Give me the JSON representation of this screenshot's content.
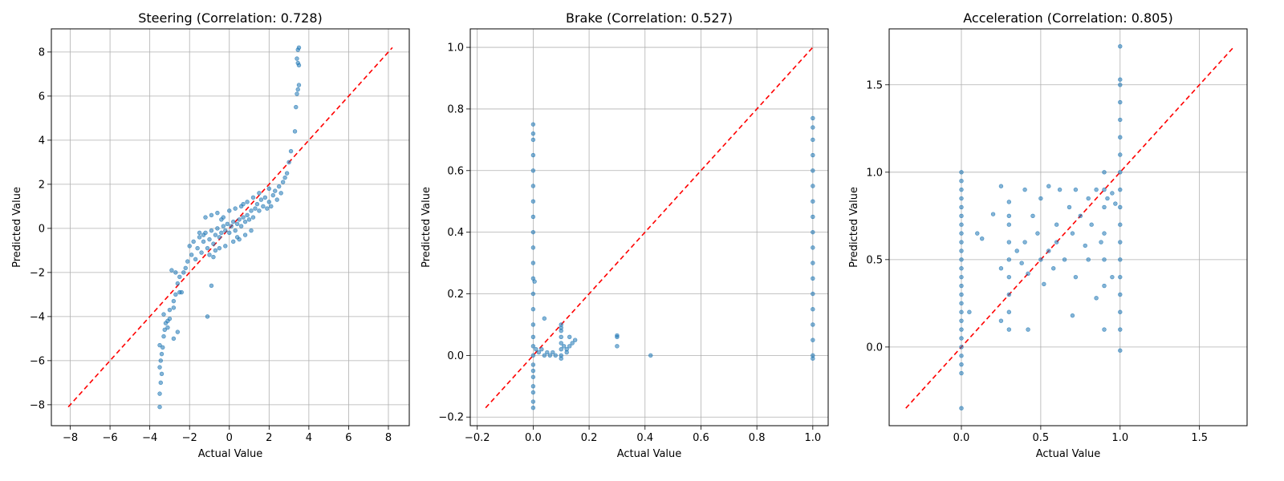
{
  "chart_data": [
    {
      "type": "scatter",
      "title": "Steering (Correlation: 0.728)",
      "xlabel": "Actual Value",
      "ylabel": "Predicted Value",
      "xlim": [
        -8.95,
        9.05
      ],
      "ylim": [
        -8.95,
        9.05
      ],
      "xticks": [
        -8,
        -6,
        -4,
        -2,
        0,
        2,
        4,
        6,
        8
      ],
      "xtick_labels": [
        "−8",
        "−6",
        "−4",
        "−2",
        "0",
        "2",
        "4",
        "6",
        "8"
      ],
      "yticks": [
        -8,
        -6,
        -4,
        -2,
        0,
        2,
        4,
        6,
        8
      ],
      "ytick_labels": [
        "−8",
        "−6",
        "−4",
        "−2",
        "0",
        "2",
        "4",
        "6",
        "8"
      ],
      "grid": true,
      "reference_line": {
        "style": "dashed",
        "color": "#ff0000",
        "from": [
          -8.1,
          -8.1
        ],
        "to": [
          8.2,
          8.2
        ]
      },
      "point_color": "#1f77b4",
      "points": [
        [
          -3.5,
          -8.1
        ],
        [
          -3.5,
          -7.5
        ],
        [
          -3.45,
          -7.0
        ],
        [
          -3.4,
          -6.6
        ],
        [
          -3.5,
          -6.3
        ],
        [
          -3.45,
          -6.0
        ],
        [
          -3.4,
          -5.7
        ],
        [
          -3.35,
          -5.4
        ],
        [
          -3.5,
          -5.3
        ],
        [
          -3.3,
          -4.9
        ],
        [
          -3.25,
          -4.6
        ],
        [
          -3.2,
          -4.3
        ],
        [
          -3.1,
          -4.5
        ],
        [
          -3.0,
          -4.1
        ],
        [
          -3.3,
          -3.9
        ],
        [
          -3.0,
          -3.7
        ],
        [
          -2.8,
          -3.6
        ],
        [
          -2.8,
          -3.3
        ],
        [
          -2.7,
          -3.0
        ],
        [
          -2.5,
          -2.9
        ],
        [
          -2.4,
          -2.9
        ],
        [
          -2.6,
          -2.5
        ],
        [
          -2.5,
          -2.2
        ],
        [
          -2.7,
          -2.0
        ],
        [
          -2.9,
          -1.9
        ],
        [
          -2.8,
          -5.0
        ],
        [
          -2.6,
          -4.7
        ],
        [
          -3.1,
          -4.2
        ],
        [
          -2.2,
          -1.8
        ],
        [
          -2.1,
          -1.5
        ],
        [
          -1.9,
          -1.2
        ],
        [
          -2.0,
          -0.8
        ],
        [
          -1.8,
          -0.6
        ],
        [
          -1.6,
          -0.9
        ],
        [
          -1.5,
          -0.4
        ],
        [
          -1.3,
          -0.6
        ],
        [
          -1.2,
          -0.2
        ],
        [
          -1.4,
          -1.1
        ],
        [
          -1.1,
          -0.9
        ],
        [
          -1.0,
          -0.5
        ],
        [
          -0.9,
          -0.1
        ],
        [
          -0.8,
          -0.7
        ],
        [
          -0.7,
          -0.3
        ],
        [
          -0.6,
          0.0
        ],
        [
          -0.5,
          -0.4
        ],
        [
          -0.4,
          -0.2
        ],
        [
          -0.3,
          0.1
        ],
        [
          -0.2,
          -0.1
        ],
        [
          -0.1,
          0.2
        ],
        [
          0.0,
          -0.2
        ],
        [
          0.1,
          0.1
        ],
        [
          0.2,
          0.3
        ],
        [
          0.3,
          -0.1
        ],
        [
          0.4,
          0.2
        ],
        [
          0.5,
          0.4
        ],
        [
          0.6,
          0.1
        ],
        [
          0.7,
          0.5
        ],
        [
          0.8,
          0.3
        ],
        [
          0.9,
          0.6
        ],
        [
          1.0,
          0.4
        ],
        [
          1.1,
          0.8
        ],
        [
          1.2,
          0.5
        ],
        [
          1.3,
          0.9
        ],
        [
          1.4,
          1.1
        ],
        [
          1.5,
          0.8
        ],
        [
          1.6,
          1.3
        ],
        [
          1.7,
          1.0
        ],
        [
          1.8,
          1.4
        ],
        [
          -1.2,
          0.5
        ],
        [
          -0.9,
          0.6
        ],
        [
          -0.6,
          0.7
        ],
        [
          -0.3,
          0.5
        ],
        [
          0.0,
          0.8
        ],
        [
          0.3,
          0.9
        ],
        [
          0.6,
          1.0
        ],
        [
          0.9,
          1.2
        ],
        [
          -0.5,
          -0.9
        ],
        [
          -0.2,
          -0.8
        ],
        [
          0.2,
          -0.6
        ],
        [
          0.5,
          -0.5
        ],
        [
          0.8,
          -0.3
        ],
        [
          1.1,
          -0.1
        ],
        [
          -1.0,
          -1.2
        ],
        [
          -0.7,
          -1.0
        ],
        [
          -0.9,
          -2.6
        ],
        [
          -1.1,
          -4.0
        ],
        [
          2.0,
          1.2
        ],
        [
          2.2,
          1.5
        ],
        [
          2.3,
          1.7
        ],
        [
          2.0,
          1.8
        ],
        [
          2.5,
          1.9
        ],
        [
          2.7,
          2.1
        ],
        [
          2.8,
          2.3
        ],
        [
          2.9,
          2.5
        ],
        [
          2.1,
          1.0
        ],
        [
          2.4,
          1.3
        ],
        [
          2.6,
          1.6
        ],
        [
          3.0,
          3.0
        ],
        [
          3.1,
          3.5
        ],
        [
          3.3,
          4.4
        ],
        [
          3.35,
          5.5
        ],
        [
          3.4,
          6.1
        ],
        [
          3.45,
          6.3
        ],
        [
          3.5,
          6.5
        ],
        [
          3.45,
          7.5
        ],
        [
          3.5,
          7.4
        ],
        [
          3.4,
          7.7
        ],
        [
          3.45,
          8.1
        ],
        [
          3.5,
          8.2
        ],
        [
          -1.7,
          -1.4
        ],
        [
          -2.3,
          -2.0
        ],
        [
          -1.5,
          -0.2
        ],
        [
          1.2,
          1.4
        ],
        [
          1.5,
          1.6
        ],
        [
          0.7,
          1.1
        ],
        [
          -0.4,
          0.4
        ],
        [
          0.4,
          -0.4
        ],
        [
          1.9,
          0.9
        ],
        [
          -0.8,
          -1.3
        ],
        [
          -1.3,
          -0.3
        ]
      ]
    },
    {
      "type": "scatter",
      "title": "Brake (Correlation: 0.527)",
      "xlabel": "Actual Value",
      "ylabel": "Predicted Value",
      "xlim": [
        -0.225,
        1.055
      ],
      "ylim": [
        -0.228,
        1.06
      ],
      "xticks": [
        -0.2,
        0.0,
        0.2,
        0.4,
        0.6,
        0.8,
        1.0
      ],
      "xtick_labels": [
        "−0.2",
        "0.0",
        "0.2",
        "0.4",
        "0.6",
        "0.8",
        "1.0"
      ],
      "yticks": [
        -0.2,
        0.0,
        0.2,
        0.4,
        0.6,
        0.8,
        1.0
      ],
      "ytick_labels": [
        "−0.2",
        "0.0",
        "0.2",
        "0.4",
        "0.6",
        "0.8",
        "1.0"
      ],
      "grid": true,
      "reference_line": {
        "style": "dashed",
        "color": "#ff0000",
        "from": [
          -0.17,
          -0.17
        ],
        "to": [
          1.0,
          1.0
        ]
      },
      "point_color": "#1f77b4",
      "points": [
        [
          0.0,
          -0.17
        ],
        [
          0.0,
          -0.15
        ],
        [
          0.0,
          -0.12
        ],
        [
          0.0,
          -0.1
        ],
        [
          0.0,
          -0.07
        ],
        [
          0.0,
          -0.05
        ],
        [
          0.0,
          -0.03
        ],
        [
          0.0,
          0.0
        ],
        [
          0.0,
          0.03
        ],
        [
          0.0,
          0.06
        ],
        [
          0.0,
          0.1
        ],
        [
          0.0,
          0.15
        ],
        [
          0.0,
          0.2
        ],
        [
          0.0,
          0.25
        ],
        [
          0.0,
          0.3
        ],
        [
          0.0,
          0.35
        ],
        [
          0.0,
          0.4
        ],
        [
          0.0,
          0.45
        ],
        [
          0.0,
          0.5
        ],
        [
          0.0,
          0.55
        ],
        [
          0.0,
          0.6
        ],
        [
          0.0,
          0.65
        ],
        [
          0.0,
          0.7
        ],
        [
          0.0,
          0.72
        ],
        [
          0.0,
          0.75
        ],
        [
          0.005,
          0.24
        ],
        [
          0.01,
          0.02
        ],
        [
          0.02,
          0.01
        ],
        [
          0.03,
          0.02
        ],
        [
          0.04,
          0.0
        ],
        [
          0.05,
          0.01
        ],
        [
          0.06,
          0.0
        ],
        [
          0.07,
          0.01
        ],
        [
          0.08,
          0.0
        ],
        [
          0.04,
          0.12
        ],
        [
          0.1,
          -0.01
        ],
        [
          0.1,
          0.0
        ],
        [
          0.1,
          0.02
        ],
        [
          0.1,
          0.04
        ],
        [
          0.1,
          0.06
        ],
        [
          0.1,
          0.08
        ],
        [
          0.1,
          0.09
        ],
        [
          0.1,
          0.1
        ],
        [
          0.11,
          0.03
        ],
        [
          0.12,
          0.02
        ],
        [
          0.13,
          0.03
        ],
        [
          0.14,
          0.04
        ],
        [
          0.15,
          0.05
        ],
        [
          0.13,
          0.06
        ],
        [
          0.12,
          0.01
        ],
        [
          0.3,
          0.03
        ],
        [
          0.3,
          0.06
        ],
        [
          0.3,
          0.065
        ],
        [
          0.42,
          0.0
        ],
        [
          1.0,
          -0.01
        ],
        [
          1.0,
          0.0
        ],
        [
          1.0,
          0.05
        ],
        [
          1.0,
          0.1
        ],
        [
          1.0,
          0.15
        ],
        [
          1.0,
          0.2
        ],
        [
          1.0,
          0.25
        ],
        [
          1.0,
          0.3
        ],
        [
          1.0,
          0.35
        ],
        [
          1.0,
          0.4
        ],
        [
          1.0,
          0.45
        ],
        [
          1.0,
          0.5
        ],
        [
          1.0,
          0.55
        ],
        [
          1.0,
          0.6
        ],
        [
          1.0,
          0.65
        ],
        [
          1.0,
          0.7
        ],
        [
          1.0,
          0.74
        ],
        [
          1.0,
          0.77
        ]
      ]
    },
    {
      "type": "scatter",
      "title": "Acceleration (Correlation: 0.805)",
      "xlabel": "Actual Value",
      "ylabel": "Predicted Value",
      "xlim": [
        -0.455,
        1.8
      ],
      "ylim": [
        -0.45,
        1.82
      ],
      "xticks": [
        0.0,
        0.5,
        1.0,
        1.5
      ],
      "xtick_labels": [
        "0.0",
        "0.5",
        "1.0",
        "1.5"
      ],
      "yticks": [
        0.0,
        0.5,
        1.0,
        1.5
      ],
      "ytick_labels": [
        "0.0",
        "0.5",
        "1.0",
        "1.5"
      ],
      "grid": true,
      "reference_line": {
        "style": "dashed",
        "color": "#ff0000",
        "from": [
          -0.35,
          -0.35
        ],
        "to": [
          1.72,
          1.72
        ]
      },
      "point_color": "#1f77b4",
      "points": [
        [
          0.0,
          -0.35
        ],
        [
          0.0,
          -0.15
        ],
        [
          0.0,
          -0.1
        ],
        [
          0.0,
          -0.05
        ],
        [
          0.0,
          0.0
        ],
        [
          0.0,
          0.05
        ],
        [
          0.0,
          0.1
        ],
        [
          0.0,
          0.15
        ],
        [
          0.0,
          0.2
        ],
        [
          0.0,
          0.25
        ],
        [
          0.0,
          0.3
        ],
        [
          0.0,
          0.35
        ],
        [
          0.0,
          0.4
        ],
        [
          0.0,
          0.45
        ],
        [
          0.0,
          0.5
        ],
        [
          0.0,
          0.55
        ],
        [
          0.0,
          0.6
        ],
        [
          0.0,
          0.65
        ],
        [
          0.0,
          0.7
        ],
        [
          0.0,
          0.75
        ],
        [
          0.0,
          0.8
        ],
        [
          0.0,
          0.85
        ],
        [
          0.0,
          0.9
        ],
        [
          0.0,
          0.95
        ],
        [
          0.0,
          1.0
        ],
        [
          0.05,
          0.2
        ],
        [
          0.1,
          0.65
        ],
        [
          0.13,
          0.62
        ],
        [
          0.2,
          0.76
        ],
        [
          0.25,
          0.92
        ],
        [
          0.25,
          0.15
        ],
        [
          0.25,
          0.45
        ],
        [
          0.3,
          0.1
        ],
        [
          0.3,
          0.2
        ],
        [
          0.3,
          0.3
        ],
        [
          0.3,
          0.4
        ],
        [
          0.3,
          0.5
        ],
        [
          0.3,
          0.6
        ],
        [
          0.3,
          0.7
        ],
        [
          0.3,
          0.75
        ],
        [
          0.3,
          0.83
        ],
        [
          0.35,
          0.55
        ],
        [
          0.38,
          0.48
        ],
        [
          0.4,
          0.6
        ],
        [
          0.4,
          0.9
        ],
        [
          0.42,
          0.1
        ],
        [
          0.42,
          0.42
        ],
        [
          0.45,
          0.75
        ],
        [
          0.48,
          0.65
        ],
        [
          0.5,
          0.5
        ],
        [
          0.5,
          0.85
        ],
        [
          0.52,
          0.36
        ],
        [
          0.55,
          0.55
        ],
        [
          0.55,
          0.92
        ],
        [
          0.58,
          0.45
        ],
        [
          0.6,
          0.6
        ],
        [
          0.6,
          0.7
        ],
        [
          0.62,
          0.9
        ],
        [
          0.65,
          0.5
        ],
        [
          0.68,
          0.8
        ],
        [
          0.7,
          0.65
        ],
        [
          0.7,
          0.18
        ],
        [
          0.72,
          0.4
        ],
        [
          0.72,
          0.9
        ],
        [
          0.75,
          0.75
        ],
        [
          0.78,
          0.58
        ],
        [
          0.8,
          0.85
        ],
        [
          0.8,
          0.5
        ],
        [
          0.82,
          0.7
        ],
        [
          0.85,
          0.28
        ],
        [
          0.85,
          0.9
        ],
        [
          0.88,
          0.6
        ],
        [
          0.9,
          0.1
        ],
        [
          0.9,
          0.35
        ],
        [
          0.9,
          0.5
        ],
        [
          0.9,
          0.65
        ],
        [
          0.9,
          0.8
        ],
        [
          0.9,
          0.9
        ],
        [
          0.9,
          1.0
        ],
        [
          0.92,
          0.85
        ],
        [
          0.95,
          0.88
        ],
        [
          0.95,
          0.4
        ],
        [
          0.97,
          0.82
        ],
        [
          1.0,
          -0.02
        ],
        [
          1.0,
          0.1
        ],
        [
          1.0,
          0.2
        ],
        [
          1.0,
          0.3
        ],
        [
          1.0,
          0.4
        ],
        [
          1.0,
          0.5
        ],
        [
          1.0,
          0.6
        ],
        [
          1.0,
          0.7
        ],
        [
          1.0,
          0.8
        ],
        [
          1.0,
          0.9
        ],
        [
          1.0,
          1.0
        ],
        [
          1.0,
          1.1
        ],
        [
          1.0,
          1.2
        ],
        [
          1.0,
          1.3
        ],
        [
          1.0,
          1.4
        ],
        [
          1.0,
          1.5
        ],
        [
          1.0,
          1.53
        ],
        [
          1.0,
          1.72
        ]
      ]
    }
  ]
}
